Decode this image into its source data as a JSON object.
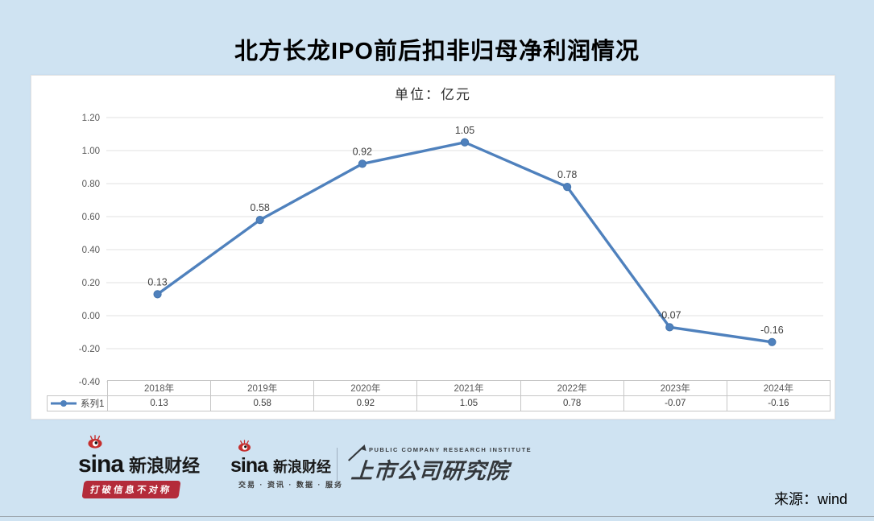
{
  "page": {
    "title": "北方长龙IPO前后扣非归母净利润情况",
    "source_label": "来源：wind",
    "background_color": "#cfe3f2"
  },
  "chart_data": {
    "type": "line",
    "title": "北方长龙IPO前后扣非归母净利润情况",
    "subtitle": "单位：亿元",
    "categories": [
      "2018年",
      "2019年",
      "2020年",
      "2021年",
      "2022年",
      "2023年",
      "2024年"
    ],
    "series": [
      {
        "name": "系列1",
        "values": [
          0.13,
          0.58,
          0.92,
          1.05,
          0.78,
          -0.07,
          -0.16
        ]
      }
    ],
    "data_labels": [
      "0.13",
      "0.58",
      "0.92",
      "1.05",
      "0.78",
      "-0.07",
      "-0.16"
    ],
    "ylim": [
      -0.4,
      1.2
    ],
    "ytick_step": 0.2,
    "ytick_labels": [
      "1.20",
      "1.00",
      "0.80",
      "0.60",
      "0.40",
      "0.20",
      "0.00",
      "-0.20",
      "-0.40"
    ],
    "grid": true,
    "legend_position": "bottom-left",
    "data_table_shown": true,
    "line_color": "#4f81bd",
    "marker_color": "#4676ae",
    "grid_color": "#e0e0e0",
    "axis_label_color": "#595959",
    "data_label_color": "#3f3f3f"
  },
  "footer": {
    "logo_sina_primary": {
      "wordmark": "sina",
      "name": "新浪财经",
      "slogan": "打破信息不对称"
    },
    "logo_sina_secondary": {
      "wordmark": "sina",
      "name": "新浪财经",
      "services": "交易 · 资讯 · 数据 · 服务"
    },
    "logo_institute": {
      "subtitle_en": "PUBLIC COMPANY RESEARCH INSTITUTE",
      "name_cn": "上市公司研究院"
    }
  }
}
